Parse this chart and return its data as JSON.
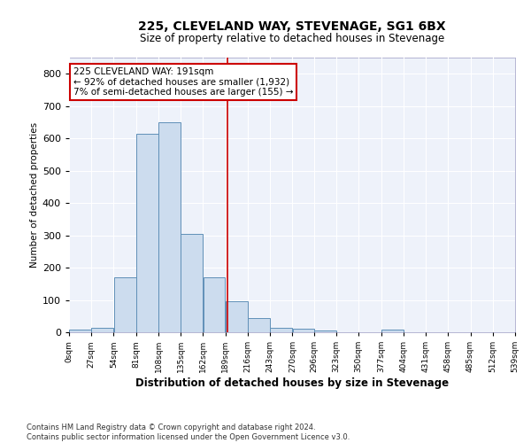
{
  "title": "225, CLEVELAND WAY, STEVENAGE, SG1 6BX",
  "subtitle": "Size of property relative to detached houses in Stevenage",
  "xlabel": "Distribution of detached houses by size in Stevenage",
  "ylabel": "Number of detached properties",
  "bar_color": "#ccdcee",
  "bar_edge_color": "#6090b8",
  "background_color": "#eef2fa",
  "grid_color": "#ffffff",
  "vline_x": 191,
  "vline_color": "#cc0000",
  "bin_edges": [
    0,
    27,
    54,
    81,
    108,
    135,
    162,
    189,
    216,
    243,
    270,
    296,
    323,
    350,
    377,
    404,
    431,
    458,
    485,
    512,
    539
  ],
  "bar_heights": [
    8,
    15,
    170,
    615,
    650,
    305,
    170,
    97,
    45,
    15,
    10,
    5,
    0,
    0,
    8,
    0,
    0,
    0,
    0,
    0
  ],
  "ylim": [
    0,
    850
  ],
  "yticks": [
    0,
    100,
    200,
    300,
    400,
    500,
    600,
    700,
    800
  ],
  "annotation_title": "225 CLEVELAND WAY: 191sqm",
  "annotation_line1": "← 92% of detached houses are smaller (1,932)",
  "annotation_line2": "7% of semi-detached houses are larger (155) →",
  "annotation_box_color": "#ffffff",
  "annotation_box_edge": "#cc0000",
  "footer_line1": "Contains HM Land Registry data © Crown copyright and database right 2024.",
  "footer_line2": "Contains public sector information licensed under the Open Government Licence v3.0.",
  "tick_labels": [
    "0sqm",
    "27sqm",
    "54sqm",
    "81sqm",
    "108sqm",
    "135sqm",
    "162sqm",
    "189sqm",
    "216sqm",
    "243sqm",
    "270sqm",
    "296sqm",
    "323sqm",
    "350sqm",
    "377sqm",
    "404sqm",
    "431sqm",
    "458sqm",
    "485sqm",
    "512sqm",
    "539sqm"
  ]
}
